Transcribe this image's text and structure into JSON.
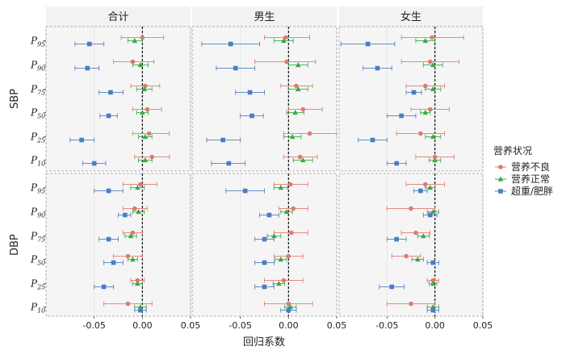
{
  "chart_data": {
    "type": "scatter",
    "subtype": "forest-plot-with-error-bars",
    "facet_columns": [
      "合计",
      "男生",
      "女生"
    ],
    "facet_rows": [
      "SBP",
      "DBP"
    ],
    "percentile_rows": [
      {
        "base": "P",
        "sub": "95"
      },
      {
        "base": "P",
        "sub": "90"
      },
      {
        "base": "P",
        "sub": "75"
      },
      {
        "base": "P",
        "sub": "50"
      },
      {
        "base": "P",
        "sub": "25"
      },
      {
        "base": "P",
        "sub": "10"
      }
    ],
    "xlabel": "回归系数",
    "xlim": [
      -0.1,
      0.05
    ],
    "xticks": [
      "-0.05",
      "0.00",
      "0.05"
    ],
    "xtick_values": [
      -0.05,
      0.0,
      0.05
    ],
    "reference_line": 0,
    "legend": {
      "title": "营养状况",
      "placement": "right"
    },
    "series": [
      {
        "name": "营养不良",
        "color": "#e07a6f",
        "marker": "circle"
      },
      {
        "name": "营养正常",
        "color": "#3aa845",
        "marker": "triangle"
      },
      {
        "name": "超重/肥胖",
        "color": "#4a7ec0",
        "marker": "square"
      }
    ],
    "panels": [
      {
        "row": "SBP",
        "col": "合计",
        "points": [
          [
            [
              0.0,
              -0.022,
              0.022
            ],
            [
              -0.008,
              -0.015,
              0.0
            ],
            [
              -0.055,
              -0.07,
              -0.04
            ]
          ],
          [
            [
              -0.01,
              -0.03,
              0.012
            ],
            [
              -0.002,
              -0.01,
              0.006
            ],
            [
              -0.057,
              -0.07,
              -0.045
            ]
          ],
          [
            [
              0.003,
              -0.012,
              0.018
            ],
            [
              0.002,
              -0.006,
              0.01
            ],
            [
              -0.033,
              -0.045,
              -0.02
            ]
          ],
          [
            [
              0.005,
              -0.01,
              0.02
            ],
            [
              0.0,
              -0.006,
              0.006
            ],
            [
              -0.035,
              -0.044,
              -0.026
            ]
          ],
          [
            [
              0.007,
              -0.01,
              0.028
            ],
            [
              0.003,
              -0.004,
              0.01
            ],
            [
              -0.063,
              -0.075,
              -0.05
            ]
          ],
          [
            [
              0.01,
              -0.008,
              0.028
            ],
            [
              0.003,
              -0.004,
              0.01
            ],
            [
              -0.05,
              -0.062,
              -0.038
            ]
          ]
        ]
      },
      {
        "row": "SBP",
        "col": "男生",
        "points": [
          [
            [
              -0.003,
              -0.025,
              0.022
            ],
            [
              -0.005,
              -0.015,
              0.005
            ],
            [
              -0.06,
              -0.09,
              -0.03
            ]
          ],
          [
            [
              -0.002,
              -0.035,
              0.028
            ],
            [
              0.01,
              0.0,
              0.02
            ],
            [
              -0.055,
              -0.075,
              -0.035
            ]
          ],
          [
            [
              0.008,
              -0.008,
              0.025
            ],
            [
              0.01,
              0.0,
              0.02
            ],
            [
              -0.04,
              -0.055,
              -0.025
            ]
          ],
          [
            [
              0.015,
              0.0,
              0.035
            ],
            [
              0.007,
              -0.002,
              0.016
            ],
            [
              -0.038,
              -0.05,
              -0.026
            ]
          ],
          [
            [
              0.022,
              -0.005,
              0.05
            ],
            [
              0.004,
              -0.005,
              0.013
            ],
            [
              -0.068,
              -0.085,
              -0.05
            ]
          ],
          [
            [
              0.012,
              -0.005,
              0.03
            ],
            [
              0.015,
              0.005,
              0.025
            ],
            [
              -0.062,
              -0.08,
              -0.045
            ]
          ]
        ]
      },
      {
        "row": "SBP",
        "col": "女生",
        "points": [
          [
            [
              -0.003,
              -0.035,
              0.03
            ],
            [
              -0.01,
              -0.02,
              0.0
            ],
            [
              -0.07,
              -0.098,
              -0.042
            ]
          ],
          [
            [
              -0.005,
              -0.035,
              0.025
            ],
            [
              -0.002,
              -0.012,
              0.008
            ],
            [
              -0.06,
              -0.075,
              -0.045
            ]
          ],
          [
            [
              -0.01,
              -0.03,
              0.01
            ],
            [
              -0.002,
              -0.01,
              0.006
            ],
            [
              -0.022,
              -0.03,
              -0.014
            ]
          ],
          [
            [
              -0.005,
              -0.025,
              0.015
            ],
            [
              -0.01,
              -0.015,
              -0.005
            ],
            [
              -0.035,
              -0.05,
              -0.02
            ]
          ],
          [
            [
              -0.015,
              -0.04,
              0.01
            ],
            [
              -0.002,
              -0.01,
              0.006
            ],
            [
              -0.065,
              -0.08,
              -0.05
            ]
          ],
          [
            [
              0.0,
              -0.02,
              0.02
            ],
            [
              0.0,
              -0.006,
              0.006
            ],
            [
              -0.04,
              -0.05,
              -0.03
            ]
          ]
        ]
      },
      {
        "row": "DBP",
        "col": "合计",
        "points": [
          [
            [
              -0.002,
              -0.02,
              0.015
            ],
            [
              -0.005,
              -0.012,
              0.002
            ],
            [
              -0.035,
              -0.05,
              -0.02
            ]
          ],
          [
            [
              -0.008,
              -0.02,
              0.005
            ],
            [
              -0.004,
              -0.01,
              0.002
            ],
            [
              -0.018,
              -0.025,
              -0.012
            ]
          ],
          [
            [
              -0.01,
              -0.02,
              0.0
            ],
            [
              -0.012,
              -0.018,
              -0.006
            ],
            [
              -0.035,
              -0.045,
              -0.025
            ]
          ],
          [
            [
              -0.015,
              -0.03,
              0.0
            ],
            [
              -0.01,
              -0.015,
              -0.005
            ],
            [
              -0.03,
              -0.04,
              -0.02
            ]
          ],
          [
            [
              -0.005,
              -0.012,
              0.002
            ],
            [
              -0.005,
              -0.01,
              0.0
            ],
            [
              -0.04,
              -0.05,
              -0.03
            ]
          ],
          [
            [
              -0.015,
              -0.04,
              0.01
            ],
            [
              -0.002,
              -0.008,
              0.004
            ],
            [
              -0.002,
              -0.008,
              0.004
            ]
          ]
        ]
      },
      {
        "row": "DBP",
        "col": "男生",
        "points": [
          [
            [
              0.002,
              -0.015,
              0.02
            ],
            [
              -0.008,
              -0.015,
              -0.001
            ],
            [
              -0.045,
              -0.065,
              -0.025
            ]
          ],
          [
            [
              0.005,
              -0.01,
              0.02
            ],
            [
              -0.002,
              -0.008,
              0.004
            ],
            [
              -0.02,
              -0.03,
              -0.01
            ]
          ],
          [
            [
              0.003,
              -0.015,
              0.02
            ],
            [
              -0.015,
              -0.022,
              -0.008
            ],
            [
              -0.025,
              -0.035,
              -0.015
            ]
          ],
          [
            [
              0.0,
              -0.015,
              0.015
            ],
            [
              -0.008,
              -0.014,
              -0.002
            ],
            [
              -0.025,
              -0.035,
              -0.015
            ]
          ],
          [
            [
              -0.005,
              -0.025,
              0.015
            ],
            [
              -0.01,
              -0.016,
              -0.004
            ],
            [
              -0.025,
              -0.035,
              -0.015
            ]
          ],
          [
            [
              0.0,
              -0.025,
              0.025
            ],
            [
              0.002,
              -0.004,
              0.008
            ],
            [
              0.0,
              -0.008,
              0.008
            ]
          ]
        ]
      },
      {
        "row": "DBP",
        "col": "女生",
        "points": [
          [
            [
              -0.01,
              -0.03,
              0.01
            ],
            [
              -0.005,
              -0.01,
              0.0
            ],
            [
              -0.015,
              -0.022,
              -0.008
            ]
          ],
          [
            [
              -0.025,
              -0.05,
              0.0
            ],
            [
              -0.002,
              -0.008,
              0.004
            ],
            [
              -0.005,
              -0.012,
              0.002
            ]
          ],
          [
            [
              -0.02,
              -0.035,
              -0.005
            ],
            [
              -0.012,
              -0.018,
              -0.006
            ],
            [
              -0.04,
              -0.05,
              -0.03
            ]
          ],
          [
            [
              -0.03,
              -0.045,
              -0.015
            ],
            [
              -0.018,
              -0.024,
              -0.012
            ],
            [
              -0.002,
              -0.008,
              0.004
            ]
          ],
          [
            [
              -0.002,
              -0.008,
              0.004
            ],
            [
              -0.002,
              -0.006,
              0.002
            ],
            [
              -0.045,
              -0.058,
              -0.032
            ]
          ],
          [
            [
              -0.025,
              -0.05,
              0.0
            ],
            [
              -0.002,
              -0.008,
              0.004
            ],
            [
              -0.002,
              -0.008,
              0.004
            ]
          ]
        ]
      }
    ]
  }
}
